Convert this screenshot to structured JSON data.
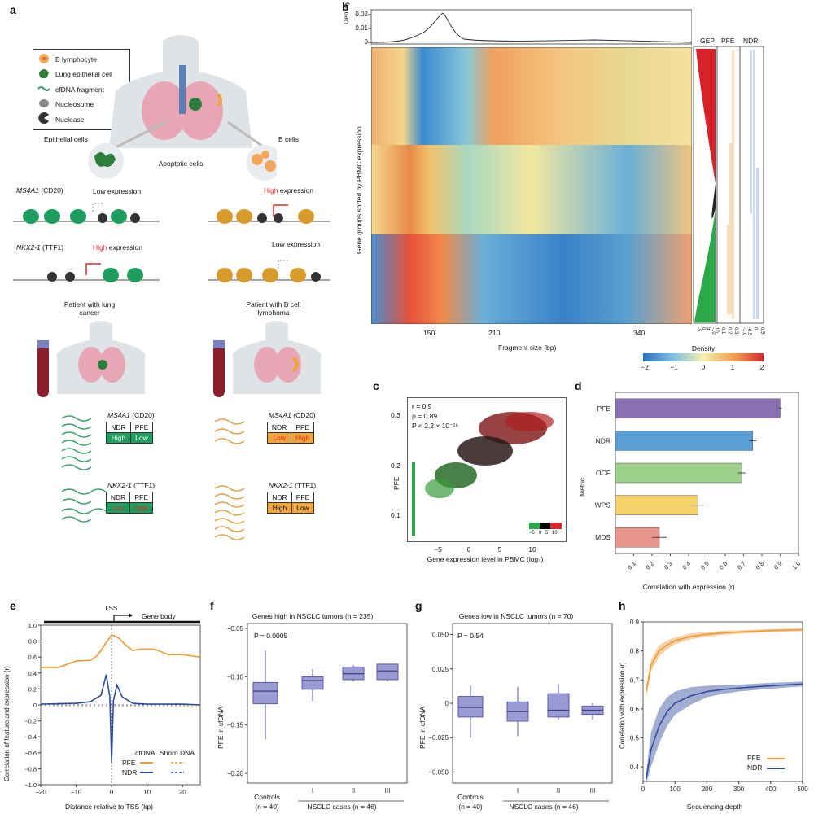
{
  "panels": {
    "a": "a",
    "b": "b",
    "c": "c",
    "d": "d",
    "e": "e",
    "f": "f",
    "g": "g",
    "h": "h"
  },
  "panel_a": {
    "legend": [
      "B lymphocyte",
      "Lung epithelial cell",
      "cfDNA fragment",
      "Nucleosome",
      "Nuclease"
    ],
    "epithelial_cells": "Epithelial cells",
    "apoptotic_cells": "Apoptotic cells",
    "b_cells": "B cells",
    "ms4a1_gene": "MS4A1",
    "ms4a1_protein": "(CD20)",
    "nkx2_gene": "NKX2-1",
    "nkx2_protein": "(TTF1)",
    "low": "Low",
    "high": "High",
    "expression": "expression",
    "low_expression": "Low expression",
    "patient_lung": "Patient with lung cancer",
    "patient_lymphoma": "Patient with B cell lymphoma",
    "table_ndr": "NDR",
    "table_pfe": "PFE",
    "left_ms4a1": [
      "High",
      "Low"
    ],
    "left_nkx2": [
      "Low",
      "High"
    ],
    "right_ms4a1": [
      "Low",
      "High"
    ],
    "right_nkx2": [
      "High",
      "Low"
    ],
    "colors": {
      "green": "#1e9e5e",
      "orange": "#f0a43a",
      "red": "#e02a2a"
    }
  },
  "panel_b": {
    "density_label": "Density",
    "density_ticks": [
      "0.02",
      "0.01",
      "0"
    ],
    "ylabel": "Gene groups sorted by PBMC expression",
    "xlabel": "Fragment size (bp)",
    "xticks": [
      "150",
      "210",
      "340"
    ],
    "side_headers": [
      "GEP",
      "PFE",
      "NDR"
    ],
    "side_ticks": [
      "-5",
      "0",
      "5",
      "-10",
      "10",
      "0.1",
      "0.2",
      "0.3",
      "-1.0",
      "-0.5",
      "0",
      "0.5"
    ],
    "colorbar_title": "Density",
    "colorbar_ticks": [
      "−2",
      "−1",
      "0",
      "1",
      "2"
    ]
  },
  "panel_c": {
    "stats": [
      "r = 0.9",
      "ρ = 0.89",
      "P < 2.2 × 10⁻¹⁶"
    ],
    "ylabel": "PFE",
    "xlabel": "Gene expression level in PBMC (log₂)",
    "yticks": [
      "0.3",
      "0.2",
      "0.1"
    ],
    "xticks": [
      "−5",
      "0",
      "5",
      "10"
    ],
    "mini_ticks": [
      "−5",
      "0",
      "5",
      "10"
    ]
  },
  "chart_data": [
    {
      "type": "bar",
      "panel": "d",
      "categories": [
        "PFE",
        "NDR",
        "OCF",
        "WPS",
        "MDS"
      ],
      "values": [
        0.9,
        0.75,
        0.69,
        0.45,
        0.24
      ],
      "errors": [
        0.01,
        0.02,
        0.02,
        0.04,
        0.04
      ],
      "colors": [
        "#8b6fb3",
        "#5a9fd8",
        "#9ccf8a",
        "#f6d36a",
        "#ea958c"
      ],
      "xlabel": "Correlation with expression (r)",
      "ylabel": "Metric",
      "xlim": [
        0,
        1.0
      ],
      "xticks": [
        "0.1",
        "0.2",
        "0.3",
        "0.4",
        "0.5",
        "0.6",
        "0.7",
        "0.8",
        "0.9",
        "1.0"
      ]
    },
    {
      "type": "line",
      "panel": "h",
      "xlabel": "Sequencing depth",
      "ylabel": "Correlation with expression (r)",
      "xlim": [
        0,
        500
      ],
      "ylim": [
        0.35,
        0.9
      ],
      "xticks": [
        "0",
        "100",
        "200",
        "300",
        "400",
        "500"
      ],
      "yticks": [
        "0.9",
        "0.8",
        "0.7",
        "0.6",
        "0.5",
        "0.4"
      ],
      "series": [
        {
          "name": "PFE",
          "color": "#ee9a35",
          "x": [
            10,
            25,
            50,
            75,
            100,
            150,
            200,
            250,
            300,
            400,
            500
          ],
          "y": [
            0.66,
            0.75,
            0.8,
            0.82,
            0.835,
            0.85,
            0.857,
            0.862,
            0.865,
            0.87,
            0.873
          ],
          "band": [
            0.02,
            0.02,
            0.02,
            0.015,
            0.012,
            0.01,
            0.008,
            0.007,
            0.006,
            0.005,
            0.005
          ]
        },
        {
          "name": "NDR",
          "color": "#2f4b9c",
          "x": [
            10,
            25,
            50,
            75,
            100,
            150,
            200,
            250,
            300,
            400,
            500
          ],
          "y": [
            0.36,
            0.46,
            0.54,
            0.59,
            0.62,
            0.645,
            0.66,
            0.667,
            0.672,
            0.68,
            0.686
          ],
          "band": [
            0.02,
            0.06,
            0.06,
            0.05,
            0.04,
            0.03,
            0.02,
            0.015,
            0.012,
            0.01,
            0.008
          ]
        }
      ]
    },
    {
      "type": "line",
      "panel": "e",
      "xlabel": "Distance relative to TSS (kp)",
      "ylabel": "Correlation of feature and expression (r)",
      "xlim": [
        -20,
        25
      ],
      "ylim": [
        -1.0,
        1.0
      ],
      "xticks": [
        "−20",
        "−10",
        "0",
        "10",
        "20"
      ],
      "yticks": [
        "1.0",
        "0.8",
        "0.6",
        "0.4",
        "0.2",
        "0",
        "−0.2",
        "−0.4",
        "−0.6",
        "−0.8",
        "−1.0"
      ],
      "series": [
        {
          "name": "PFE",
          "color": "#ee9a35",
          "x": [
            -20,
            -15,
            -10,
            -6,
            -4,
            -2,
            0,
            2,
            4,
            6,
            8,
            12,
            16,
            20,
            25
          ],
          "y": [
            0.47,
            0.47,
            0.55,
            0.56,
            0.62,
            0.75,
            0.88,
            0.84,
            0.75,
            0.68,
            0.7,
            0.7,
            0.63,
            0.63,
            0.6
          ]
        },
        {
          "name": "NDR",
          "color": "#2f4b9c",
          "x": [
            -20,
            -10,
            -6,
            -3,
            -1.5,
            -0.5,
            0,
            0.5,
            1.5,
            3,
            6,
            10,
            20,
            25
          ],
          "y": [
            0.01,
            0.02,
            0.04,
            0.12,
            0.38,
            0.1,
            -0.72,
            0.05,
            0.25,
            0.1,
            0.02,
            0.01,
            0.01,
            0.0
          ]
        }
      ]
    },
    {
      "type": "box",
      "panel": "f",
      "title": "Genes high in NSCLC tumors (n = 235)",
      "ylabel": "PFE in cfDNA",
      "pvalue": "P = 0.0005",
      "categories": [
        "Controls",
        "I",
        "II",
        "III"
      ],
      "boxes": [
        {
          "q1": -0.128,
          "median": -0.115,
          "q3": -0.106,
          "low": -0.165,
          "high": -0.073
        },
        {
          "q1": -0.113,
          "median": -0.104,
          "q3": -0.1,
          "low": -0.125,
          "high": -0.092
        },
        {
          "q1": -0.103,
          "median": -0.097,
          "q3": -0.09,
          "low": -0.105,
          "high": -0.088
        },
        {
          "q1": -0.103,
          "median": -0.094,
          "q3": -0.087,
          "low": -0.105,
          "high": -0.087
        }
      ],
      "ylim": [
        -0.21,
        -0.045
      ],
      "yticks": [
        "−0.05",
        "−0.10",
        "−0.15",
        "−0.20"
      ],
      "xlabels": [
        "Controls",
        "(n = 40)",
        "NSCLC cases (n = 46)"
      ]
    },
    {
      "type": "box",
      "panel": "g",
      "title": "Genes low in NSCLC tumors (n = 70)",
      "ylabel": "PFE in cfDNA",
      "pvalue": "P = 0.54",
      "categories": [
        "Controls",
        "I",
        "II",
        "III"
      ],
      "boxes": [
        {
          "q1": -0.01,
          "median": -0.003,
          "q3": 0.005,
          "low": -0.025,
          "high": 0.013
        },
        {
          "q1": -0.013,
          "median": -0.006,
          "q3": 0.001,
          "low": -0.024,
          "high": 0.012
        },
        {
          "q1": -0.01,
          "median": -0.005,
          "q3": 0.007,
          "low": -0.012,
          "high": 0.014
        },
        {
          "q1": -0.008,
          "median": -0.005,
          "q3": -0.002,
          "low": -0.012,
          "high": 0.0
        }
      ],
      "ylim": [
        -0.058,
        0.058
      ],
      "yticks": [
        "0.050",
        "0.025",
        "0",
        "−0.025",
        "−0.050"
      ],
      "xlabels": [
        "Controls",
        "(n = 40)",
        "NSCLC cases (n = 46)"
      ]
    }
  ],
  "panel_e": {
    "tss": "TSS",
    "gene_body": "Gene body",
    "legend_cfdna": "cfDNA",
    "legend_shorn": "Shorn DNA",
    "legend_pfe": "PFE",
    "legend_ndr": "NDR"
  },
  "panel_h": {
    "legend": [
      "PFE",
      "NDR"
    ]
  }
}
